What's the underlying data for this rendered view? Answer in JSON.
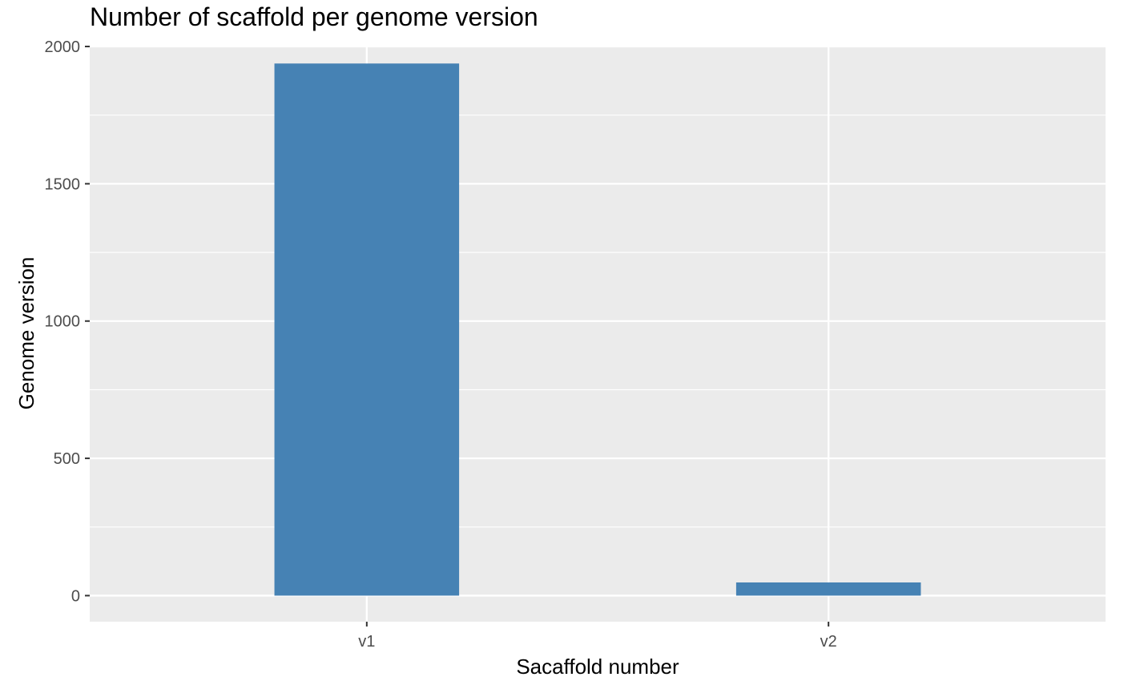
{
  "chart_data": {
    "type": "bar",
    "title": "Number of scaffold per genome version",
    "xlabel": "Sacaffold number",
    "ylabel": "Genome version",
    "categories": [
      "v1",
      "v2"
    ],
    "values": [
      1938,
      48
    ],
    "ylim": [
      -95,
      2003
    ],
    "yticks": [
      0,
      500,
      1000,
      1500,
      2000
    ],
    "ytick_labels": [
      "0",
      "500",
      "1000",
      "1500",
      "2000"
    ],
    "grid": true,
    "legend": "none",
    "colors": {
      "bar": "#4682b4",
      "panel": "#ebebeb",
      "grid": "#ffffff",
      "tick": "#333333"
    }
  }
}
